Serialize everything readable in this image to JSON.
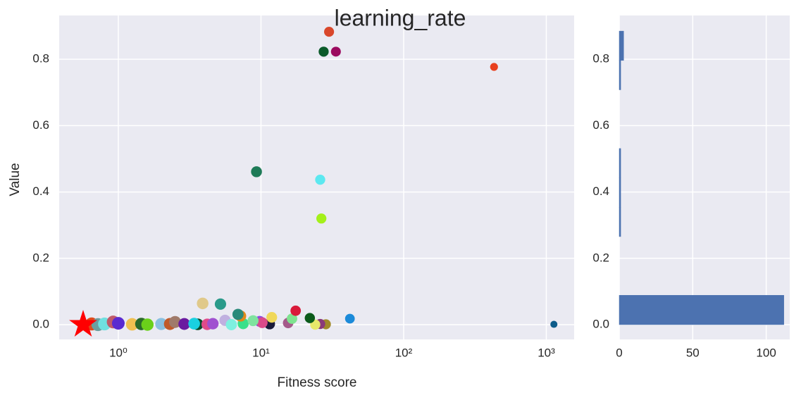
{
  "chart_data": [
    {
      "type": "scatter",
      "title": "learning_rate",
      "xlabel": "Fitness score",
      "ylabel": "Value",
      "xscale": "log",
      "grid": true,
      "x": [
        30,
        27.5,
        33.5,
        430,
        9.3,
        26,
        26.5,
        1130,
        42,
        17.5,
        22,
        16.5,
        15.5,
        24,
        26,
        28.5,
        3.9,
        5.2,
        6.9,
        7.2,
        11.9,
        8.8,
        10.2,
        11.5,
        9.8,
        7.5,
        6.2,
        5.6,
        4.6,
        4.2,
        3.4,
        3.6,
        2.9,
        2.5,
        2.3,
        2.0,
        1.6,
        1.45,
        1.25,
        1.0,
        0.92,
        0.8,
        0.72,
        0.65
      ],
      "values": [
        0.883,
        0.823,
        0.823,
        0.777,
        0.461,
        0.437,
        0.32,
        0.001,
        0.018,
        0.042,
        0.02,
        0.018,
        0.005,
        0.0,
        0.002,
        0.001,
        0.064,
        0.062,
        0.031,
        0.026,
        0.022,
        0.012,
        0.006,
        0.002,
        0.01,
        0.003,
        0.0,
        0.013,
        0.003,
        0.001,
        0.003,
        0.001,
        0.002,
        0.008,
        0.002,
        0.002,
        0.0,
        0.002,
        0.001,
        0.004,
        0.008,
        0.002,
        0.0,
        0.002
      ],
      "colors": [
        "#d9472b",
        "#0b5a2a",
        "#9b0a5f",
        "#e8401f",
        "#1d7a57",
        "#5ce8f0",
        "#a4f01a",
        "#0d5c8a",
        "#1b8ad9",
        "#d91a3a",
        "#0b5a1a",
        "#7ee38f",
        "#a45a8a",
        "#e8e86a",
        "#8a3a7a",
        "#a08a2a",
        "#e0c98a",
        "#2a9a8a",
        "#2a8a7a",
        "#e08a1a",
        "#f0d85a",
        "#7ee39f",
        "#d94a8a",
        "#1a1a3a",
        "#8a4ae0",
        "#3ae08a",
        "#7ef0e0",
        "#c0b0e0",
        "#a050d0",
        "#e04a8a",
        "#1ad0e0",
        "#0a4a2a",
        "#6a1aa0",
        "#a07a6a",
        "#c05a2a",
        "#8ac0e0",
        "#6ad01a",
        "#2a6a2a",
        "#f0c050",
        "#5a2ad0",
        "#c05a6a",
        "#70e0e0",
        "#6aa0a0",
        "#e04a1a"
      ],
      "best": {
        "x": 0.567,
        "y": 0,
        "color": "#ff0000"
      },
      "xlim": [
        0.385,
        1567
      ],
      "ylim": [
        -0.0446,
        0.932
      ],
      "xticks": [
        {
          "value": 1,
          "label": "10⁰"
        },
        {
          "value": 10,
          "label": "10¹"
        },
        {
          "value": 100,
          "label": "10²"
        },
        {
          "value": 1000,
          "label": "10³"
        }
      ],
      "yticks": [
        {
          "value": 0,
          "label": "0.0"
        },
        0.2,
        0.4,
        0.6,
        0.8
      ]
    },
    {
      "type": "histogram",
      "orientation": "horizontal",
      "grid": true,
      "color": "#4c72b0",
      "bins": [
        0,
        0.0885,
        0.177,
        0.2655,
        0.354,
        0.4425,
        0.531,
        0.6195,
        0.708,
        0.7965,
        0.885
      ],
      "values": [
        112,
        0,
        0,
        1,
        1,
        1,
        0,
        0,
        1,
        3
      ],
      "xlim": [
        0,
        116
      ],
      "xticks": [
        0,
        50,
        100
      ],
      "ylim": [
        -0.0446,
        0.932
      ],
      "yticks": [
        {
          "value": 0,
          "label": "0.0"
        },
        0.2,
        0.4,
        0.6,
        0.8
      ]
    }
  ]
}
